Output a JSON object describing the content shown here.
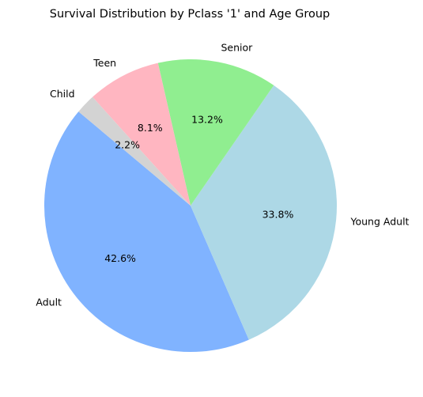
{
  "chart_data": {
    "type": "pie",
    "title": "Survival Distribution by Pclass '1' and Age Group",
    "categories": [
      "Adult",
      "Young Adult",
      "Senior",
      "Teen",
      "Child"
    ],
    "values": [
      42.6,
      33.8,
      13.2,
      8.1,
      2.2
    ],
    "value_labels": [
      "42.6%",
      "33.8%",
      "13.2%",
      "8.1%",
      "2.2%"
    ],
    "colors": [
      "#80b3ff",
      "#add8e6",
      "#90ee90",
      "#ffb6c1",
      "#d3d3d3"
    ],
    "start_angle_deg": 140,
    "direction": "counterclockwise",
    "legend": "none"
  }
}
